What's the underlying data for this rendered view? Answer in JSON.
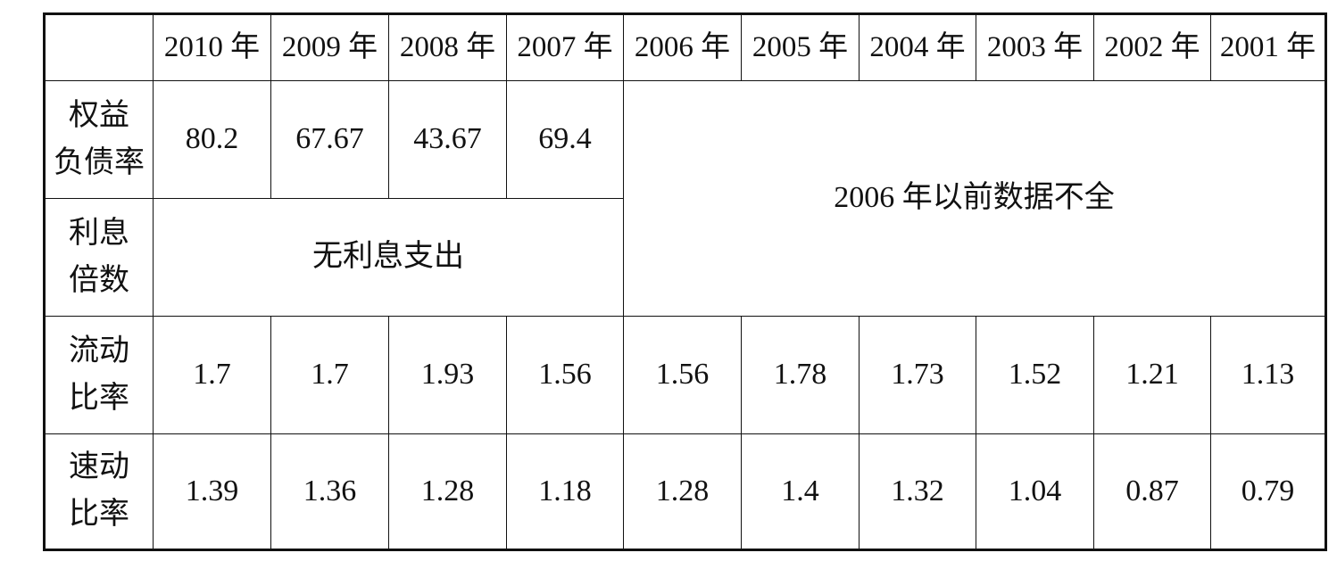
{
  "table": {
    "years": [
      "2010 年",
      "2009 年",
      "2008 年",
      "2007 年",
      "2006 年",
      "2005 年",
      "2004 年",
      "2003 年",
      "2002 年",
      "2001 年"
    ],
    "rows": [
      {
        "label": "权益\n负债率",
        "values": [
          80.2,
          67.67,
          43.67,
          69.4
        ]
      },
      {
        "label": "利息\n倍数",
        "note": "无利息支出"
      },
      {
        "label": "流动\n比率",
        "values": [
          1.7,
          1.7,
          1.93,
          1.56,
          1.56,
          1.78,
          1.73,
          1.52,
          1.21,
          1.13
        ]
      },
      {
        "label": "速动\n比率",
        "values": [
          1.39,
          1.36,
          1.28,
          1.18,
          1.28,
          1.4,
          1.32,
          1.04,
          0.87,
          0.79
        ]
      }
    ],
    "missing_note": "2006 年以前数据不全"
  }
}
